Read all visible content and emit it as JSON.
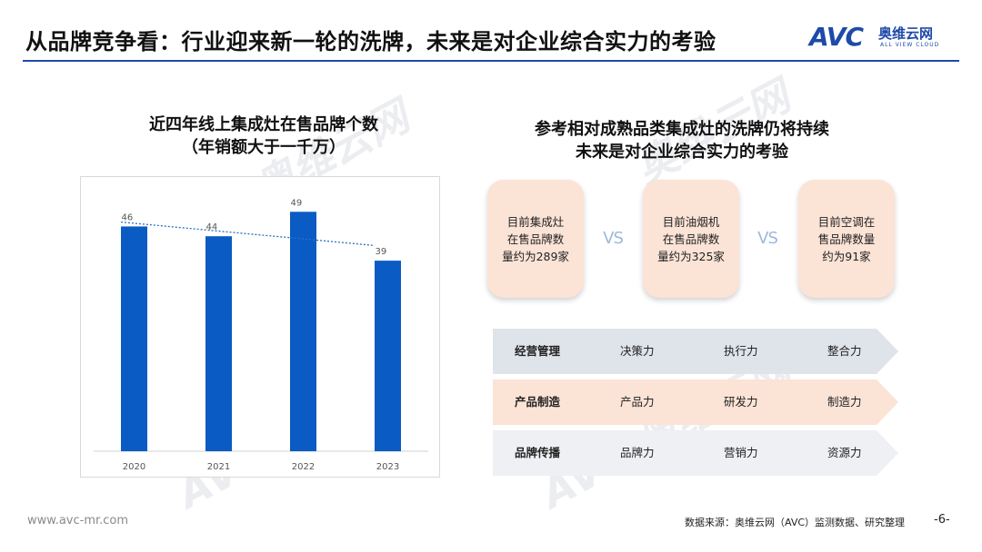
{
  "header": {
    "title": "从品牌竞争看：行业迎来新一轮的洗牌，未来是对企业综合实力的考验",
    "logo": {
      "mark": "AVC",
      "cn": "奥维云网",
      "en": "ALL VIEW CLOUD"
    }
  },
  "left_chart": {
    "title_line1": "近四年线上集成灶在售品牌个数",
    "title_line2": "（年销额大于一千万）"
  },
  "chart_data": {
    "type": "bar",
    "categories": [
      "2020",
      "2021",
      "2022",
      "2023"
    ],
    "values": [
      46,
      44,
      49,
      39
    ],
    "title": "近四年线上集成灶在售品牌个数（年销额大于一千万）",
    "xlabel": "",
    "ylabel": "",
    "ylim": [
      0,
      55
    ],
    "trendline": "dotted linear",
    "grid": false,
    "bar_color": "#0a5bc4"
  },
  "right_panel": {
    "title_line1": "参考相对成熟品类集成灶的洗牌仍将持续",
    "title_line2": "未来是对企业综合实力的考验",
    "comparisons": [
      {
        "l1": "目前集成灶",
        "l2": "在售品牌数",
        "l3": "量约为289家"
      },
      {
        "l1": "目前油烟机",
        "l2": "在售品牌数",
        "l3": "量约为325家"
      },
      {
        "l1": "目前空调在",
        "l2": "售品牌数量",
        "l3": "约为91家"
      }
    ],
    "vs_label": "VS",
    "capabilities": [
      {
        "category": "经营管理",
        "items": [
          "决策力",
          "执行力",
          "整合力"
        ]
      },
      {
        "category": "产品制造",
        "items": [
          "产品力",
          "研发力",
          "制造力"
        ]
      },
      {
        "category": "品牌传播",
        "items": [
          "品牌力",
          "营销力",
          "资源力"
        ]
      }
    ]
  },
  "footer": {
    "url": "www.avc-mr.com",
    "source": "数据来源：奥维云网（AVC）监测数据、研究整理",
    "page": "-6-"
  },
  "colors": {
    "accent_blue": "#1e4aa8",
    "bar_blue": "#0a5bc4",
    "peach": "#fbe3d6",
    "gray_band": "#dfe3ea"
  }
}
